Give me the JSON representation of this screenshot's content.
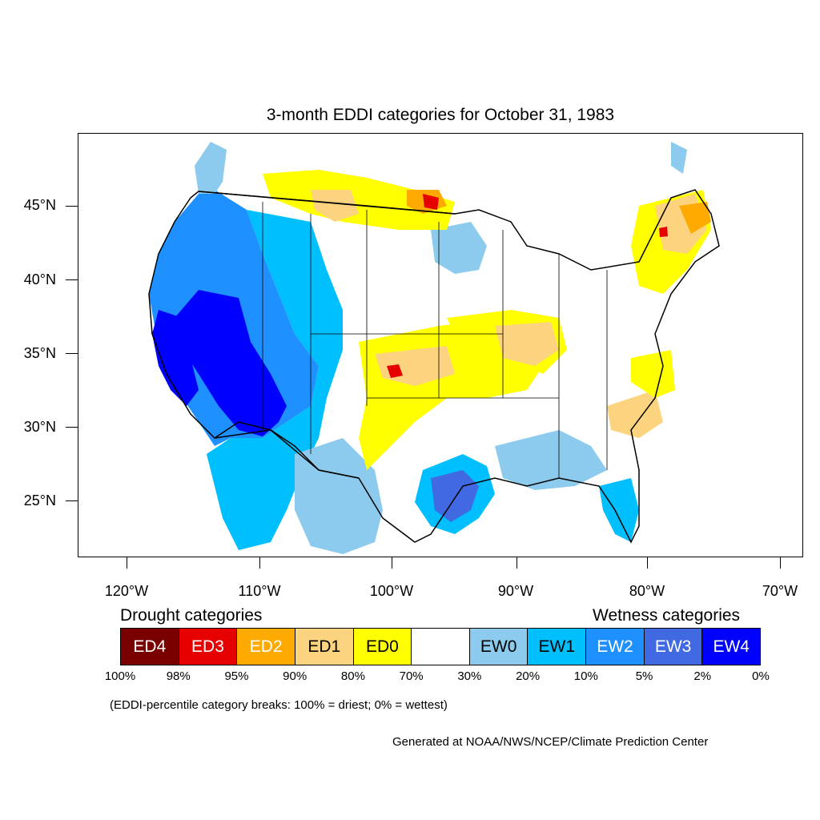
{
  "title": "3-month EDDI categories for October 31, 1983",
  "axes": {
    "lat_labels": [
      "45°N",
      "40°N",
      "35°N",
      "30°N",
      "25°N"
    ],
    "lon_labels": [
      "120°W",
      "110°W",
      "100°W",
      "90°W",
      "80°W",
      "70°W"
    ]
  },
  "legend": {
    "drought_heading": "Drought categories",
    "wetness_heading": "Wetness categories",
    "categories": [
      {
        "label": "ED4",
        "color": "#7a0000",
        "text_color": "#ffffff"
      },
      {
        "label": "ED3",
        "color": "#e60000",
        "text_color": "#ffffff"
      },
      {
        "label": "ED2",
        "color": "#ffaa00",
        "text_color": "#ffffff"
      },
      {
        "label": "ED1",
        "color": "#fcd37f",
        "text_color": "#000000"
      },
      {
        "label": "ED0",
        "color": "#ffff00",
        "text_color": "#000000"
      },
      {
        "label": "",
        "color": "#ffffff",
        "text_color": "#000000"
      },
      {
        "label": "EW0",
        "color": "#8ccbed",
        "text_color": "#000000"
      },
      {
        "label": "EW1",
        "color": "#00bfff",
        "text_color": "#000000"
      },
      {
        "label": "EW2",
        "color": "#1e90ff",
        "text_color": "#ffffff"
      },
      {
        "label": "EW3",
        "color": "#4169e1",
        "text_color": "#ffffff"
      },
      {
        "label": "EW4",
        "color": "#0000ff",
        "text_color": "#ffffff"
      }
    ],
    "breaks": [
      "100%",
      "98%",
      "95%",
      "90%",
      "80%",
      "70%",
      "30%",
      "20%",
      "10%",
      "5%",
      "2%",
      "0%"
    ]
  },
  "note": "(EDDI-percentile category breaks: 100% = driest; 0% = wettest)",
  "credit": "Generated at NOAA/NWS/NCEP/Climate Prediction Center"
}
